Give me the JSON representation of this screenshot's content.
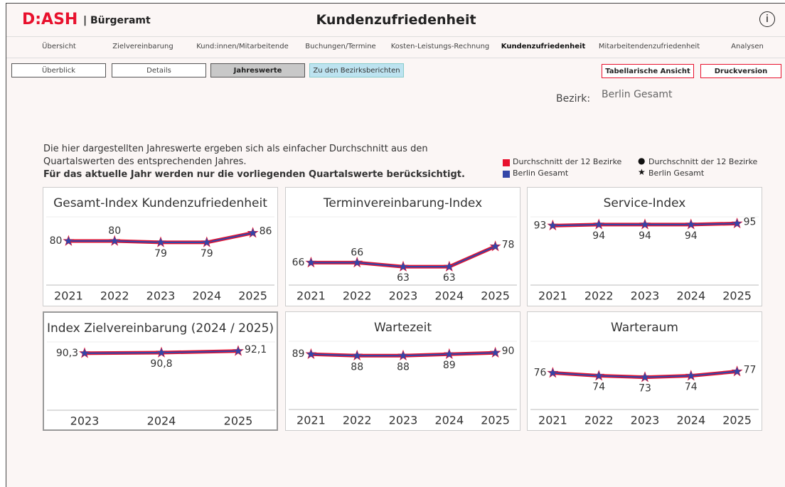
{
  "header": {
    "logo": "D:ASH",
    "app": "| Bürgeramt",
    "title": "Kundenzufriedenheit",
    "info": "i"
  },
  "nav": [
    "Übersicht",
    "Zielvereinbarung",
    "Kund:innen/Mitarbeitende",
    "Buchungen/Termine",
    "Kosten-Leistungs-Rechnung",
    "Kundenzufriedenheit",
    "Mitarbeitendenzufriedenheit",
    "Analysen"
  ],
  "nav_active": 5,
  "buttons": [
    "Überblick",
    "Details",
    "Jahreswerte",
    "Zu den Bezirksberichten"
  ],
  "buttons_right": [
    "Tabellarische Ansicht",
    "Druckversion"
  ],
  "district_label": "Bezirk:",
  "district": "Berlin Gesamt",
  "intro": [
    "Die hier dargestellten Jahreswerte ergeben sich als einfacher Durchschnitt aus den",
    "Quartalswerten des entsprechenden Jahres."
  ],
  "intro_bold": "Für das aktuelle Jahr werden nur die vorliegenden Quartalswerte berücksichtigt.",
  "legend": {
    "colors": [
      {
        "label": "Durchschnitt der 12 Bezirke",
        "color": "#e8112d"
      },
      {
        "label": "Berlin Gesamt",
        "color": "#3346a8"
      }
    ],
    "shapes": [
      {
        "label": "Durchschnitt der 12 Bezirke",
        "shape": "circle"
      },
      {
        "label": "Berlin Gesamt",
        "shape": "star"
      }
    ]
  },
  "chart_data": [
    {
      "type": "line",
      "title": "Gesamt-Index Kundenzufriedenheit",
      "categories": [
        "2021",
        "2022",
        "2023",
        "2024",
        "2025"
      ],
      "ylim": [
        50,
        100
      ],
      "series": [
        {
          "color": "#e8112d",
          "values": [
            80,
            80,
            79,
            79,
            86
          ]
        },
        {
          "color": "#3346a8",
          "values": [
            80,
            80,
            79,
            79,
            86
          ]
        }
      ]
    },
    {
      "type": "line",
      "title": "Terminvereinbarung-Index",
      "categories": [
        "2021",
        "2022",
        "2023",
        "2024",
        "2025"
      ],
      "ylim": [
        52,
        102
      ],
      "series": [
        {
          "color": "#e8112d",
          "values": [
            66,
            66,
            63,
            63,
            78
          ]
        },
        {
          "color": "#3346a8",
          "values": [
            66,
            66,
            63,
            63,
            78
          ]
        }
      ]
    },
    {
      "type": "line",
      "title": "Service-Index",
      "categories": [
        "2021",
        "2022",
        "2023",
        "2024",
        "2025"
      ],
      "ylim": [
        40,
        104
      ],
      "series": [
        {
          "color": "#e8112d",
          "values": [
            93,
            94,
            94,
            94,
            95
          ]
        },
        {
          "color": "#3346a8",
          "values": [
            93,
            94,
            94,
            94,
            95
          ]
        }
      ]
    },
    {
      "type": "line",
      "title": "Index Zielvereinbarung (2024 / 2025)",
      "categories": [
        "2023",
        "2024",
        "2025"
      ],
      "ylim": [
        46,
        102
      ],
      "series": [
        {
          "color": "#e8112d",
          "values": [
            90.3,
            90.8,
            92.1
          ]
        },
        {
          "color": "#3346a8",
          "values": [
            90.3,
            90.8,
            92.1
          ],
          "value_labels": [
            "90,3",
            "90,8",
            "92,1"
          ]
        }
      ]
    },
    {
      "type": "line",
      "title": "Wartezeit",
      "categories": [
        "2021",
        "2022",
        "2023",
        "2024",
        "2025"
      ],
      "ylim": [
        53,
        100
      ],
      "series": [
        {
          "color": "#e8112d",
          "values": [
            89,
            88,
            88,
            89,
            90
          ]
        },
        {
          "color": "#3346a8",
          "values": [
            89,
            88,
            88,
            89,
            90
          ]
        }
      ]
    },
    {
      "type": "line",
      "title": "Warteraum",
      "categories": [
        "2021",
        "2022",
        "2023",
        "2024",
        "2025"
      ],
      "ylim": [
        53,
        100
      ],
      "series": [
        {
          "color": "#e8112d",
          "values": [
            76,
            74,
            73,
            74,
            77
          ]
        },
        {
          "color": "#3346a8",
          "values": [
            76,
            74,
            73,
            74,
            77
          ]
        }
      ]
    }
  ]
}
